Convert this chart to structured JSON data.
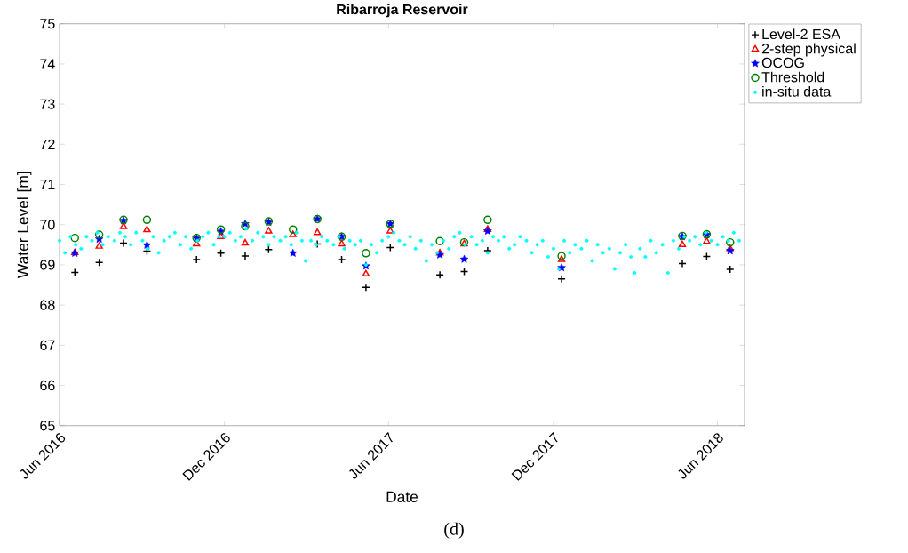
{
  "chart_data": {
    "type": "scatter",
    "title": "Ribarroja Reservoir",
    "xlabel": "Date",
    "ylabel": "Water Level [m]",
    "xlim": [
      "2016-06-01",
      "2018-07-01"
    ],
    "ylim": [
      65,
      75
    ],
    "xticks": [
      {
        "value": "2016-06-01",
        "label": "Jun 2016"
      },
      {
        "value": "2016-12-01",
        "label": "Dec 2016"
      },
      {
        "value": "2017-06-01",
        "label": "Jun 2017"
      },
      {
        "value": "2017-12-01",
        "label": "Dec 2017"
      },
      {
        "value": "2018-06-01",
        "label": "Jun 2018"
      }
    ],
    "yticks": [
      65,
      66,
      67,
      68,
      69,
      70,
      71,
      72,
      73,
      74,
      75
    ],
    "grid": false,
    "legend": "top right",
    "x": [
      "2016-06-18",
      "2016-07-15",
      "2016-08-11",
      "2016-09-06",
      "2016-10-31",
      "2016-11-27",
      "2016-12-24",
      "2017-01-19",
      "2017-02-15",
      "2017-03-14",
      "2017-04-10",
      "2017-05-07",
      "2017-06-03",
      "2017-07-28",
      "2017-08-24",
      "2017-09-19",
      "2017-12-10",
      "2018-04-23",
      "2018-05-20",
      "2018-06-15"
    ],
    "series": [
      {
        "name": "Level-2 ESA",
        "color": "#000000",
        "marker": "cross",
        "values": [
          68.81,
          69.06,
          69.54,
          69.34,
          69.13,
          69.29,
          69.22,
          69.38,
          null,
          69.52,
          69.13,
          68.44,
          69.43,
          68.75,
          68.83,
          69.35,
          68.65,
          69.03,
          69.21,
          68.89
        ]
      },
      {
        "name": "2-step physical",
        "color": "#ff0000",
        "marker": "triangle",
        "values": [
          69.3,
          69.46,
          69.95,
          69.87,
          69.52,
          69.7,
          69.54,
          69.84,
          69.75,
          69.8,
          69.52,
          68.77,
          69.84,
          69.29,
          69.52,
          69.88,
          69.13,
          69.5,
          69.58,
          69.4
        ]
      },
      {
        "name": "OCOG",
        "color": "#0000ff",
        "marker": "star",
        "values": [
          69.29,
          69.64,
          70.1,
          69.49,
          69.66,
          69.83,
          70.02,
          70.06,
          69.29,
          70.14,
          69.7,
          68.97,
          70.02,
          69.25,
          69.14,
          69.84,
          68.93,
          69.7,
          69.75,
          69.35
        ]
      },
      {
        "name": "Threshold",
        "color": "#008000",
        "marker": "circle",
        "values": [
          69.67,
          69.75,
          70.12,
          70.12,
          69.67,
          69.88,
          69.96,
          70.08,
          69.88,
          70.14,
          69.7,
          69.29,
          70.02,
          69.59,
          69.56,
          70.12,
          69.22,
          69.72,
          69.76,
          69.56
        ]
      },
      {
        "name": "in-situ data",
        "color": "#00ffff",
        "marker": "circle",
        "x": [
          "2016-06-01",
          "2016-06-07",
          "2016-06-13",
          "2016-06-19",
          "2016-06-25",
          "2016-07-01",
          "2016-07-07",
          "2016-07-13",
          "2016-07-19",
          "2016-07-25",
          "2016-08-01",
          "2016-08-07",
          "2016-08-13",
          "2016-08-19",
          "2016-08-25",
          "2016-09-01",
          "2016-09-07",
          "2016-09-13",
          "2016-09-19",
          "2016-09-25",
          "2016-10-01",
          "2016-10-07",
          "2016-10-13",
          "2016-10-19",
          "2016-10-25",
          "2016-11-01",
          "2016-11-07",
          "2016-11-13",
          "2016-11-19",
          "2016-11-25",
          "2016-12-01",
          "2016-12-07",
          "2016-12-13",
          "2016-12-19",
          "2016-12-25",
          "2017-01-01",
          "2017-01-07",
          "2017-01-13",
          "2017-01-19",
          "2017-01-25",
          "2017-02-01",
          "2017-02-07",
          "2017-02-13",
          "2017-02-19",
          "2017-02-25",
          "2017-03-01",
          "2017-03-07",
          "2017-03-13",
          "2017-03-19",
          "2017-03-25",
          "2017-04-01",
          "2017-04-07",
          "2017-04-13",
          "2017-04-19",
          "2017-04-25",
          "2017-05-01",
          "2017-05-07",
          "2017-05-13",
          "2017-05-19",
          "2017-05-25",
          "2017-06-01",
          "2017-06-07",
          "2017-06-13",
          "2017-06-19",
          "2017-06-25",
          "2017-07-01",
          "2017-07-07",
          "2017-07-13",
          "2017-07-19",
          "2017-07-25",
          "2017-08-01",
          "2017-08-07",
          "2017-08-13",
          "2017-08-19",
          "2017-08-25",
          "2017-09-01",
          "2017-09-07",
          "2017-09-13",
          "2017-09-19",
          "2017-09-25",
          "2017-10-01",
          "2017-10-07",
          "2017-10-13",
          "2017-10-19",
          "2017-10-25",
          "2017-11-01",
          "2017-11-07",
          "2017-11-13",
          "2017-11-19",
          "2017-11-25",
          "2017-12-01",
          "2017-12-07",
          "2017-12-13",
          "2017-12-19",
          "2017-12-25",
          "2018-01-01",
          "2018-01-07",
          "2018-01-13",
          "2018-01-19",
          "2018-01-25",
          "2018-02-01",
          "2018-02-07",
          "2018-02-13",
          "2018-02-19",
          "2018-02-25",
          "2018-03-01",
          "2018-03-07",
          "2018-03-13",
          "2018-03-19",
          "2018-03-25",
          "2018-04-01",
          "2018-04-07",
          "2018-04-13",
          "2018-04-19",
          "2018-04-25",
          "2018-05-01",
          "2018-05-07",
          "2018-05-13",
          "2018-05-19",
          "2018-05-25",
          "2018-06-01",
          "2018-06-07",
          "2018-06-13",
          "2018-06-19",
          "2018-06-25"
        ],
        "values": [
          69.6,
          69.3,
          69.7,
          69.5,
          69.4,
          69.7,
          69.6,
          69.8,
          69.5,
          69.7,
          69.6,
          69.8,
          69.7,
          69.5,
          69.8,
          69.6,
          69.4,
          69.7,
          69.3,
          69.6,
          69.7,
          69.8,
          69.5,
          69.7,
          69.4,
          69.6,
          69.7,
          69.8,
          69.5,
          69.7,
          69.7,
          69.8,
          69.6,
          69.7,
          69.9,
          69.6,
          69.8,
          69.7,
          69.5,
          69.7,
          69.6,
          69.7,
          69.5,
          69.8,
          69.6,
          69.1,
          69.6,
          69.5,
          69.7,
          69.6,
          69.5,
          69.7,
          69.4,
          69.6,
          69.5,
          69.6,
          69.0,
          69.5,
          69.3,
          69.6,
          69.7,
          69.8,
          69.6,
          69.5,
          69.7,
          69.4,
          69.6,
          69.1,
          69.5,
          69.3,
          69.6,
          69.4,
          69.7,
          69.8,
          69.5,
          69.7,
          69.5,
          69.6,
          69.3,
          69.7,
          69.6,
          69.7,
          69.4,
          69.5,
          69.7,
          69.6,
          69.3,
          69.5,
          69.6,
          69.2,
          69.4,
          68.9,
          69.6,
          69.3,
          69.5,
          69.4,
          69.6,
          69.1,
          69.5,
          69.3,
          69.4,
          68.9,
          69.3,
          69.5,
          69.2,
          68.8,
          69.4,
          69.2,
          69.6,
          69.3,
          69.5,
          68.8,
          69.6,
          69.4,
          69.7,
          69.6,
          69.7,
          69.5,
          69.8,
          69.6,
          69.5,
          69.7,
          69.6,
          69.8,
          69.6
        ]
      }
    ],
    "annotations": [
      "(d)"
    ]
  }
}
